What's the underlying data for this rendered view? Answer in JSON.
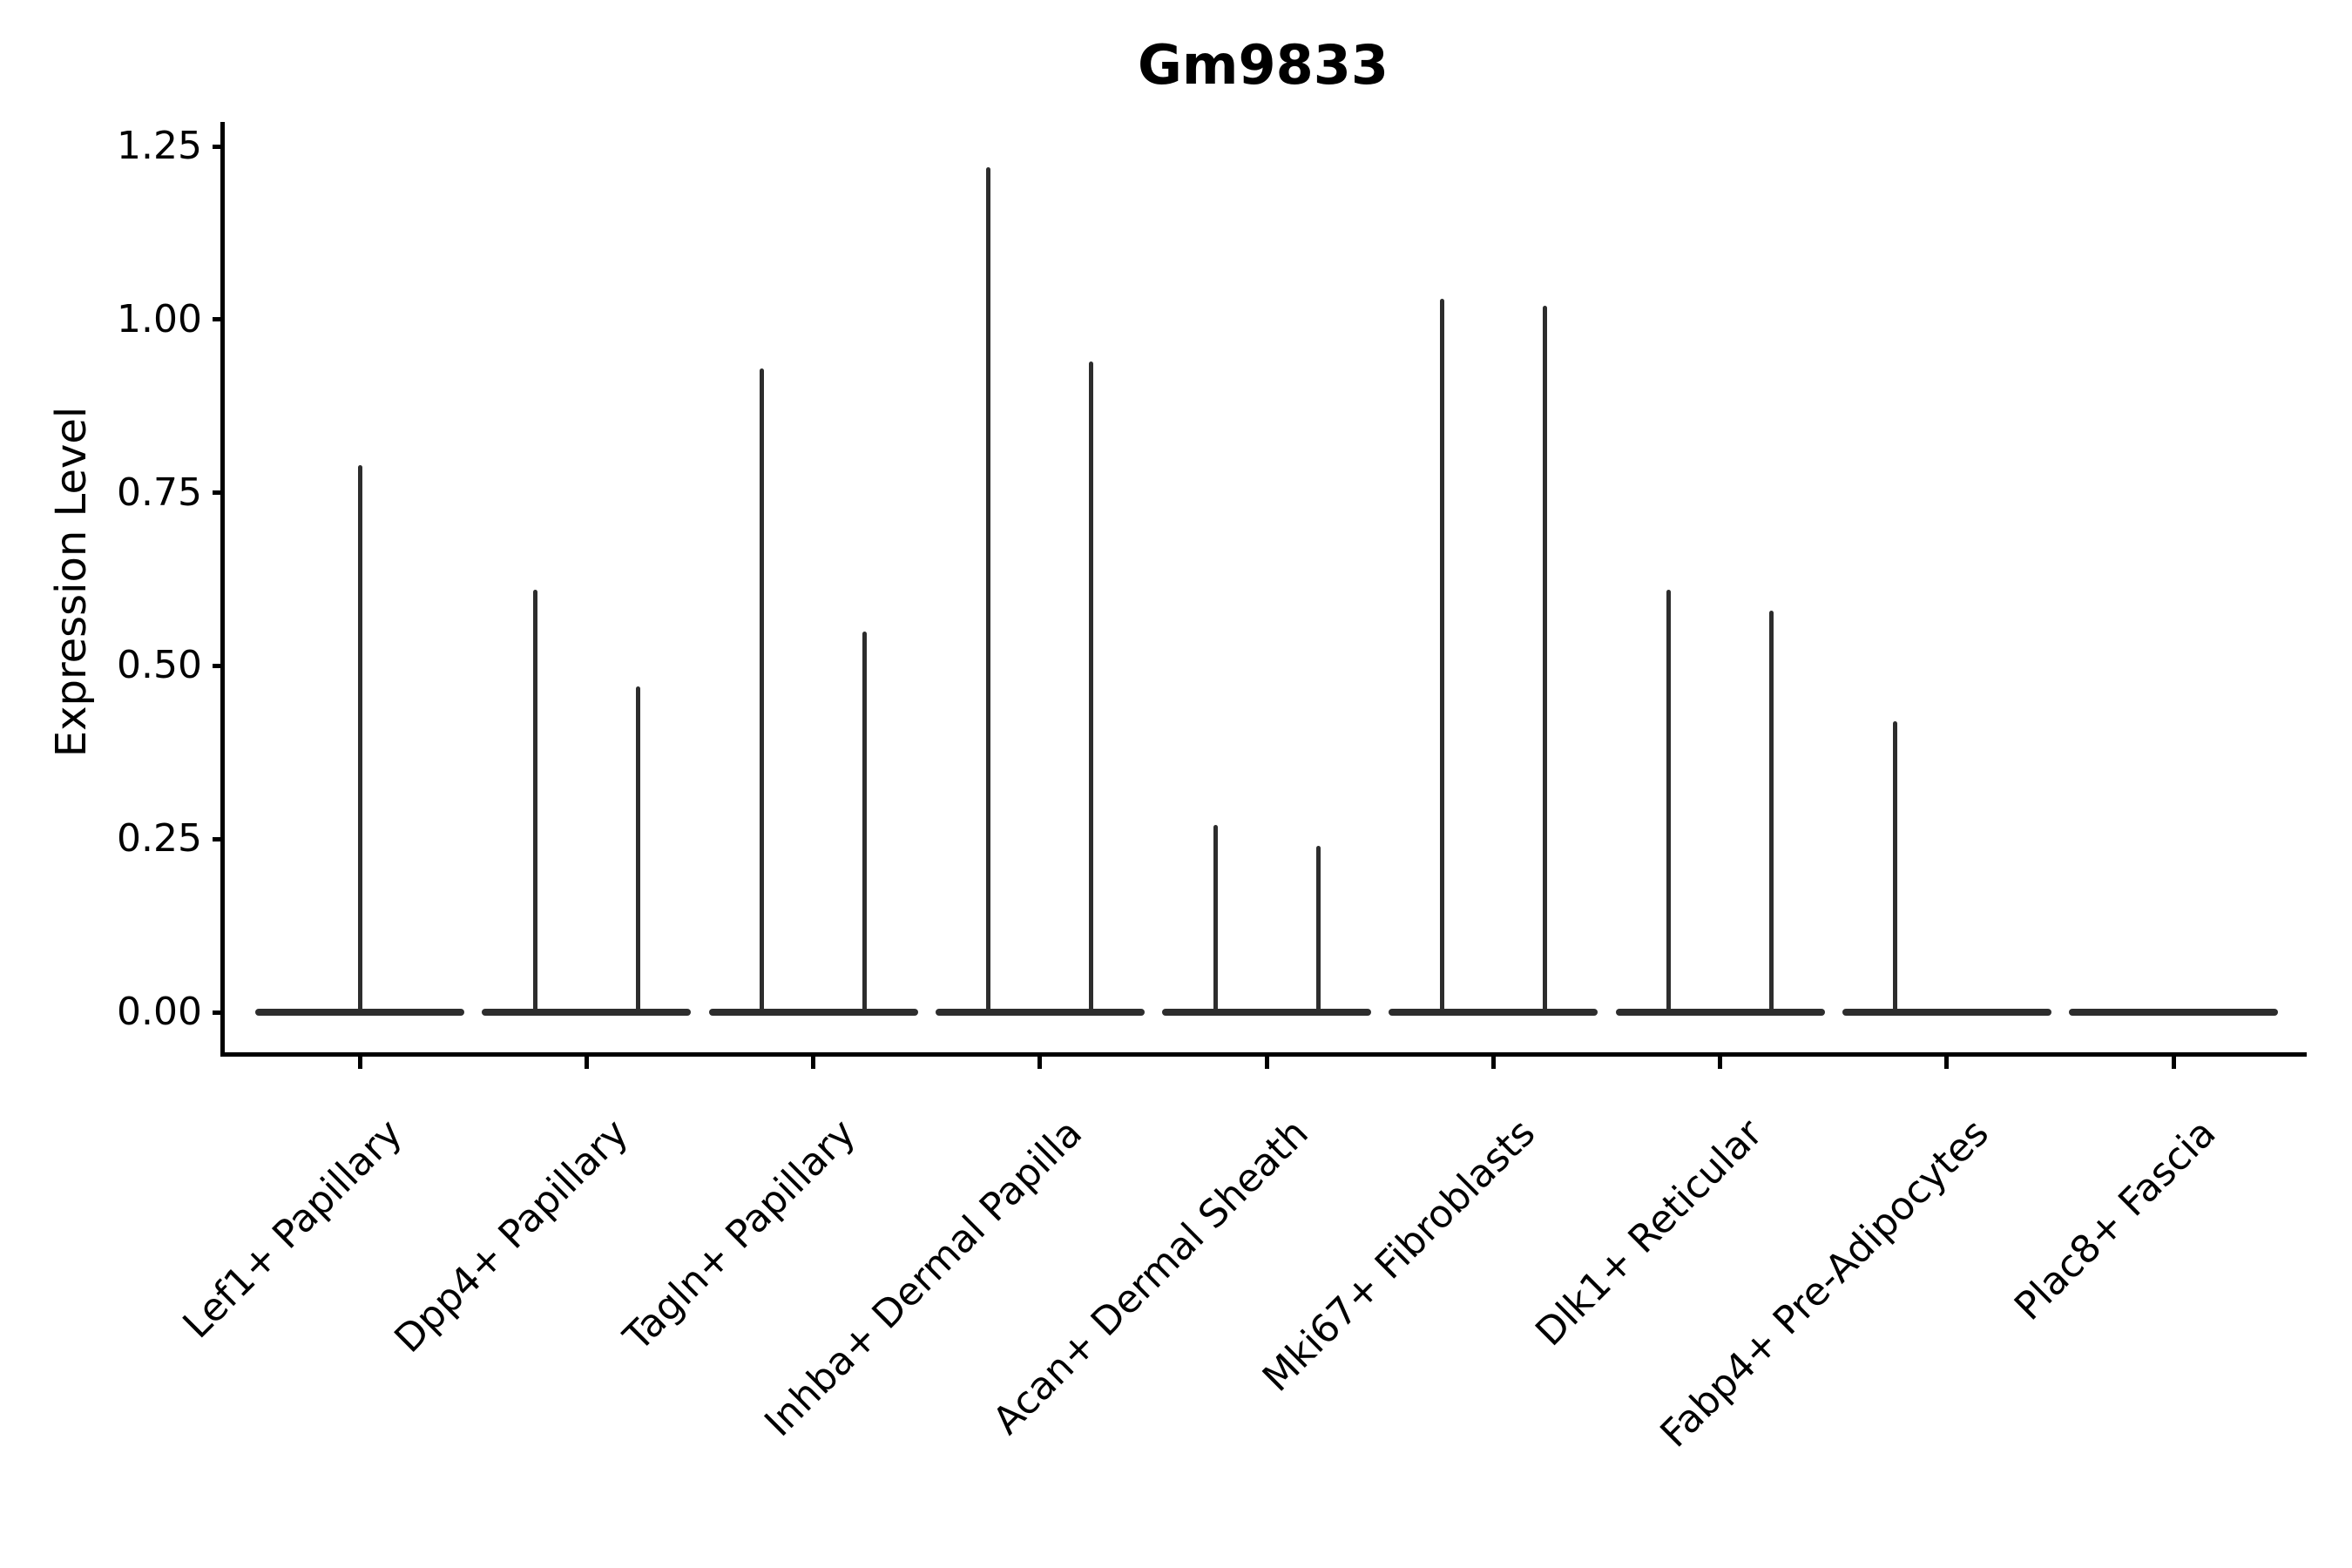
{
  "chart_data": {
    "type": "violin",
    "title": "Gm9833",
    "ylabel": "Expression Level",
    "xlabel": "",
    "ylim": [
      -0.06,
      1.27
    ],
    "yticks": [
      "0.00",
      "0.25",
      "0.50",
      "0.75",
      "1.00",
      "1.25"
    ],
    "ytick_values": [
      0.0,
      0.25,
      0.5,
      0.75,
      1.0,
      1.25
    ],
    "grid": false,
    "legend": null,
    "xtick_rotation_deg": 45,
    "categories": [
      "Lef1+ Papillary",
      "Dpp4+ Papillary",
      "Tagln+ Papillary",
      "Inhba+ Dermal Papilla",
      "Acan+ Dermal Sheath",
      "Mki67+ Fibroblasts",
      "Dlk1+ Reticular",
      "Fabp4+ Pre-Adipocytes",
      "Plac8+ Fascia"
    ],
    "violins": [
      {
        "category": "Lef1+ Papillary",
        "zero_baseline": true,
        "spikes": [
          {
            "position": "center",
            "max_value": 0.79
          }
        ]
      },
      {
        "category": "Dpp4+ Papillary",
        "zero_baseline": true,
        "spikes": [
          {
            "position": "left",
            "max_value": 0.61
          },
          {
            "position": "right",
            "max_value": 0.47
          }
        ]
      },
      {
        "category": "Tagln+ Papillary",
        "zero_baseline": true,
        "spikes": [
          {
            "position": "left",
            "max_value": 0.93
          },
          {
            "position": "right",
            "max_value": 0.55
          }
        ]
      },
      {
        "category": "Inhba+ Dermal Papilla",
        "zero_baseline": true,
        "spikes": [
          {
            "position": "left",
            "max_value": 1.22
          },
          {
            "position": "right",
            "max_value": 0.94
          }
        ]
      },
      {
        "category": "Acan+ Dermal Sheath",
        "zero_baseline": true,
        "spikes": [
          {
            "position": "left",
            "max_value": 0.27
          },
          {
            "position": "right",
            "max_value": 0.24
          }
        ]
      },
      {
        "category": "Mki67+ Fibroblasts",
        "zero_baseline": true,
        "spikes": [
          {
            "position": "left",
            "max_value": 1.03
          },
          {
            "position": "right",
            "max_value": 1.02
          }
        ]
      },
      {
        "category": "Dlk1+ Reticular",
        "zero_baseline": true,
        "spikes": [
          {
            "position": "left",
            "max_value": 0.61
          },
          {
            "position": "right",
            "max_value": 0.58
          }
        ]
      },
      {
        "category": "Fabp4+ Pre-Adipocytes",
        "zero_baseline": true,
        "spikes": [
          {
            "position": "left",
            "max_value": 0.42
          }
        ]
      },
      {
        "category": "Plac8+ Fascia",
        "zero_baseline": true,
        "spikes": []
      }
    ]
  }
}
